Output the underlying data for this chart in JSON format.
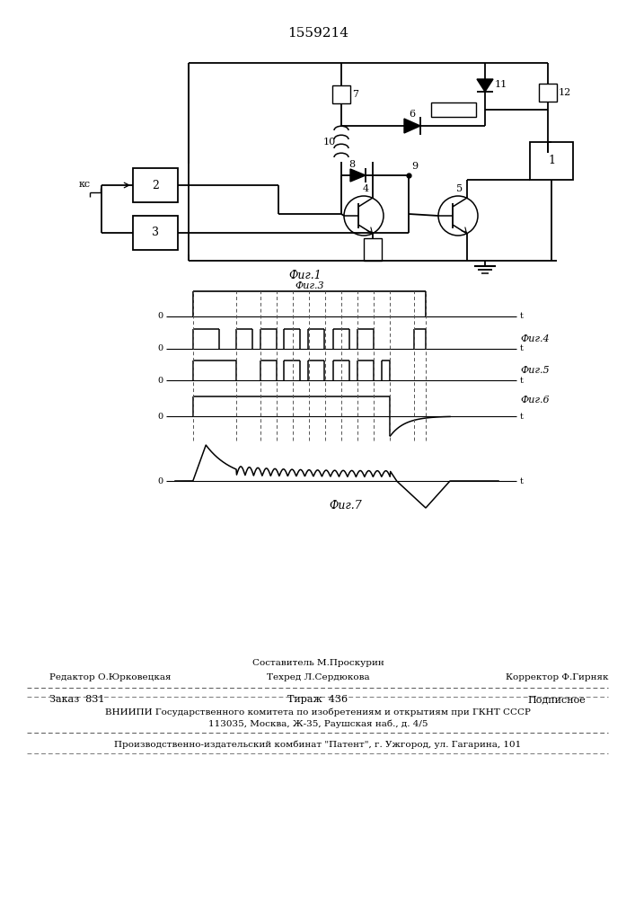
{
  "title": "1559214",
  "fig1_label": "Фиг.1",
  "fig3_label": "Фиг.3",
  "fig4_label": "Фиг.4",
  "fig5_label": "Фиг.5",
  "fig6_label": "Фиг.6",
  "fig7_label": "Фиг.7",
  "footer_editor": "Редактор О.Юрковецкая",
  "footer_composer": "Составитель М.Проскурин",
  "footer_techred": "Техред Л.Сердюкова",
  "footer_corrector": "Корректор Ф.Гирняк",
  "footer_order": "Заказ  831",
  "footer_tirazh": "Тираж  436",
  "footer_podpis": "Подписное",
  "footer_vniip1": "ВНИИПИ Государственного комитета по изобретениям и открытиям при ГКНТ СССР",
  "footer_vniip2": "113035, Москва, Ж-35, Раушская наб., д. 4/5",
  "footer_patent": "Производственно-издательский комбинат \"Патент\", г. Ужгород, ул. Гагарина, 101",
  "bg_color": "#ffffff",
  "line_color": "#000000",
  "text_color": "#000000"
}
